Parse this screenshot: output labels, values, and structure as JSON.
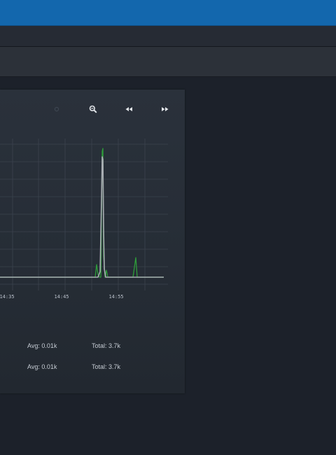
{
  "toolbar": {
    "icons": [
      "circle-dim-icon",
      "zoom-out-icon",
      "rewind-icon",
      "fast-forward-icon"
    ]
  },
  "chart_data": {
    "type": "line",
    "x_tick_labels": [
      "14:35",
      "14:45",
      "14:55"
    ],
    "series": [
      {
        "color": "#2e9c3a",
        "points": [
          [
            0,
            0
          ],
          [
            136,
            0
          ],
          [
            138,
            0.09
          ],
          [
            140,
            0.02
          ],
          [
            142,
            0
          ],
          [
            144,
            0
          ],
          [
            146,
            0.9
          ],
          [
            147,
            0.92
          ],
          [
            148,
            0.15
          ],
          [
            150,
            0
          ],
          [
            152,
            0.05
          ],
          [
            154,
            0
          ],
          [
            190,
            0
          ],
          [
            194,
            0.14
          ],
          [
            196,
            0
          ],
          [
            234,
            0
          ]
        ]
      },
      {
        "color": "#a9adb3",
        "points": [
          [
            0,
            0
          ],
          [
            140,
            0
          ],
          [
            143,
            0.04
          ],
          [
            145,
            0.55
          ],
          [
            146,
            0.86
          ],
          [
            147,
            0.84
          ],
          [
            148,
            0.35
          ],
          [
            149,
            0.06
          ],
          [
            151,
            0
          ],
          [
            234,
            0
          ]
        ]
      }
    ]
  },
  "stats": [
    {
      "avg": "Avg: 0.01k",
      "total": "Total: 3.7k"
    },
    {
      "avg": "Avg: 0.01k",
      "total": "Total: 3.7k"
    }
  ],
  "colors": {
    "topbar": "#1367ad",
    "panel": "#29303a",
    "grid": "#3b434e",
    "series_green": "#2e9c3a",
    "series_gray": "#a9adb3"
  }
}
